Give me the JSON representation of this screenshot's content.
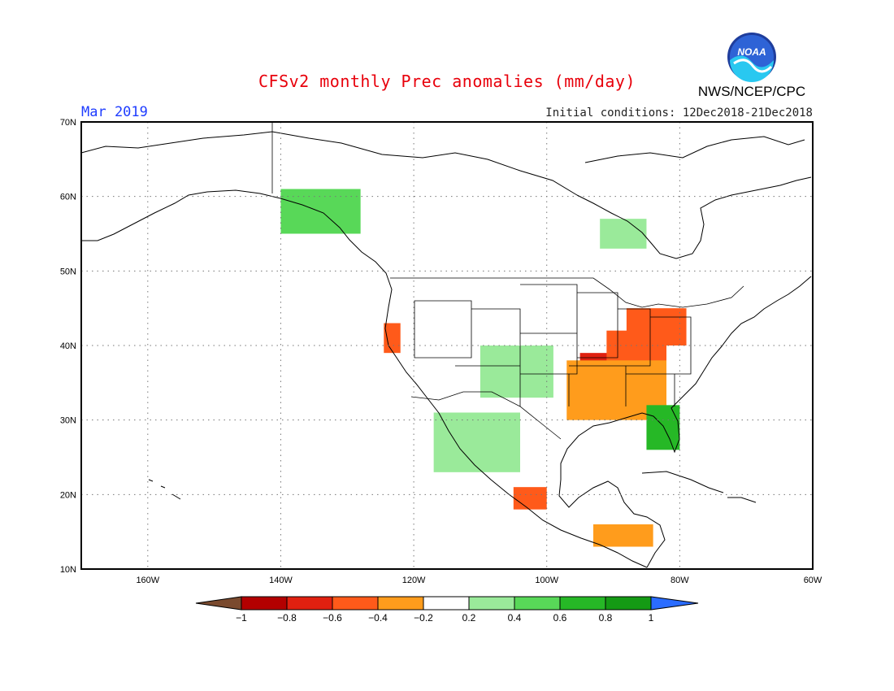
{
  "header": {
    "title": "CFSv2 monthly Prec anomalies (mm/day)",
    "agency": "NWS/NCEP/CPC",
    "month": "Mar 2019",
    "initial_conditions": "Initial conditions: 12Dec2018-21Dec2018",
    "logo_text": "NOAA"
  },
  "map": {
    "lon_range": [
      -170,
      -60
    ],
    "lat_range": [
      10,
      70
    ],
    "lat_labels": [
      "70N",
      "60N",
      "50N",
      "40N",
      "30N",
      "20N",
      "10N"
    ],
    "lon_labels": [
      "160W",
      "140W",
      "120W",
      "100W",
      "80W",
      "60W"
    ],
    "lat_values": [
      70,
      60,
      50,
      40,
      30,
      20,
      10
    ],
    "lon_values": [
      -160,
      -140,
      -120,
      -100,
      -80,
      -60
    ],
    "grid": true
  },
  "colorbar": {
    "labels": [
      "-1",
      "-0.8",
      "-0.6",
      "-0.4",
      "-0.2",
      "0.2",
      "0.4",
      "0.6",
      "0.8",
      "1"
    ],
    "colors": [
      "#7a4a2e",
      "#b30000",
      "#e02010",
      "#ff5a1a",
      "#ff9c1c",
      "#ffffff",
      "#9aea9a",
      "#58d858",
      "#26b826",
      "#149a14",
      "#2a6cff"
    ]
  },
  "anomalies": [
    {
      "name": "southeast-dry-core",
      "lon": [
        -95,
        -85
      ],
      "lat": [
        33,
        39
      ],
      "level": 2
    },
    {
      "name": "ohio-valley-dry",
      "lon": [
        -91,
        -82
      ],
      "lat": [
        34,
        42
      ],
      "level": 3
    },
    {
      "name": "mid-south-dry-edge",
      "lon": [
        -97,
        -82
      ],
      "lat": [
        30,
        38
      ],
      "level": 4
    },
    {
      "name": "great-lakes-dry",
      "lon": [
        -88,
        -79
      ],
      "lat": [
        40,
        45
      ],
      "level": 3
    },
    {
      "name": "california-dry",
      "lon": [
        -124.5,
        -122
      ],
      "lat": [
        39,
        43
      ],
      "level": 3
    },
    {
      "name": "central-america-dry",
      "lon": [
        -93,
        -84
      ],
      "lat": [
        13,
        16
      ],
      "level": 4
    },
    {
      "name": "mexico-dry",
      "lon": [
        -105,
        -100
      ],
      "lat": [
        18,
        21
      ],
      "level": 3
    },
    {
      "name": "florida-wet",
      "lon": [
        -85,
        -80
      ],
      "lat": [
        26,
        32
      ],
      "level": 8
    },
    {
      "name": "alaska-coast-wet",
      "lon": [
        -140,
        -128
      ],
      "lat": [
        55,
        61
      ],
      "level": 7
    },
    {
      "name": "plains-wet",
      "lon": [
        -110,
        -99
      ],
      "lat": [
        33,
        40
      ],
      "level": 6
    },
    {
      "name": "mexico-west-wet",
      "lon": [
        -117,
        -104
      ],
      "lat": [
        23,
        31
      ],
      "level": 6
    },
    {
      "name": "hudson-wet",
      "lon": [
        -92,
        -85
      ],
      "lat": [
        53,
        57
      ],
      "level": 6
    }
  ]
}
